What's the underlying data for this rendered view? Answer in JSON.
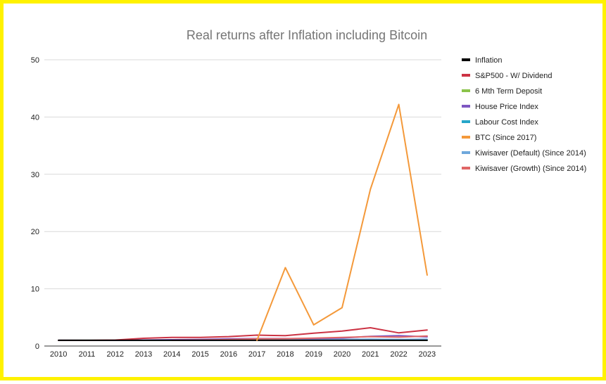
{
  "chart_data": {
    "type": "line",
    "title": "Real returns after Inflation including Bitcoin",
    "xlabel": "",
    "ylabel": "",
    "ylim": [
      0,
      50
    ],
    "yticks": [
      0,
      10,
      20,
      30,
      40,
      50
    ],
    "grid": true,
    "legend_position": "right",
    "x": [
      "2010",
      "2011",
      "2012",
      "2013",
      "2014",
      "2015",
      "2016",
      "2017",
      "2018",
      "2019",
      "2020",
      "2021",
      "2022",
      "2023"
    ],
    "series": [
      {
        "name": "Inflation",
        "color": "#000000",
        "values": [
          1.0,
          1.0,
          1.0,
          1.0,
          1.0,
          1.0,
          1.0,
          1.0,
          1.0,
          1.0,
          1.0,
          1.0,
          1.0,
          1.0
        ]
      },
      {
        "name": "S&P500 - W/ Dividend",
        "color": "#CC3344",
        "values": [
          1.0,
          1.0,
          1.05,
          1.35,
          1.5,
          1.5,
          1.65,
          1.9,
          1.8,
          2.25,
          2.6,
          3.2,
          2.3,
          2.8
        ]
      },
      {
        "name": "6 Mth Term Deposit",
        "color": "#8BC34A",
        "values": [
          1.0,
          1.0,
          1.0,
          1.02,
          1.04,
          1.05,
          1.06,
          1.06,
          1.07,
          1.07,
          1.05,
          1.02,
          1.0,
          1.02
        ]
      },
      {
        "name": "House Price Index",
        "color": "#7E57C2",
        "values": [
          1.0,
          0.98,
          1.0,
          1.05,
          1.1,
          1.15,
          1.25,
          1.3,
          1.3,
          1.3,
          1.4,
          1.7,
          1.8,
          1.6
        ]
      },
      {
        "name": "Labour Cost Index",
        "color": "#26A6C9",
        "values": [
          1.0,
          1.0,
          1.0,
          1.0,
          1.01,
          1.02,
          1.03,
          1.04,
          1.05,
          1.06,
          1.07,
          1.05,
          1.02,
          1.02
        ]
      },
      {
        "name": "BTC (Since 2017)",
        "color": "#F4993A",
        "values": [
          null,
          null,
          null,
          null,
          null,
          null,
          null,
          1.0,
          13.7,
          3.7,
          6.7,
          27.4,
          42.2,
          12.4
        ]
      },
      {
        "name": "Kiwisaver (Default) (Since 2014)",
        "color": "#6FA8DC",
        "values": [
          null,
          null,
          null,
          null,
          1.0,
          1.02,
          1.05,
          1.08,
          1.1,
          1.12,
          1.15,
          1.2,
          1.15,
          1.2
        ]
      },
      {
        "name": "Kiwisaver (Growth) (Since 2014)",
        "color": "#E06666",
        "values": [
          null,
          null,
          null,
          null,
          1.0,
          1.05,
          1.12,
          1.25,
          1.28,
          1.38,
          1.5,
          1.65,
          1.55,
          1.75
        ]
      }
    ]
  }
}
